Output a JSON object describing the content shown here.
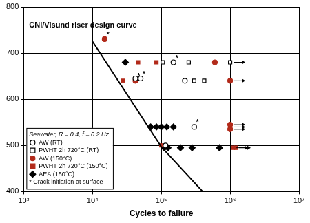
{
  "chart_data": {
    "type": "scatter",
    "x_label": "Cycles to failure",
    "log": "x",
    "grid": true,
    "legend": "lower left",
    "legend_title": "Seawater, R = 0.4, f = 0.2 Hz",
    "legend_note": "* Crack initiation at surface",
    "xlim": [
      1000,
      10000000
    ],
    "xticks": [
      {
        "value": 1000,
        "label": "10³"
      },
      {
        "value": 10000,
        "label": "10⁴"
      },
      {
        "value": 100000,
        "label": "10⁵"
      },
      {
        "value": 1000000,
        "label": "10⁶"
      },
      {
        "value": 10000000,
        "label": "10⁷"
      }
    ],
    "ylim": [
      400,
      800
    ],
    "yticks": [
      400,
      500,
      600,
      700,
      800
    ],
    "series": [
      {
        "name": "CNI/Visund riser design curve",
        "type": "line",
        "color": "#000000",
        "marker": "none",
        "line_style": "solid",
        "x": [
          10000,
          100000,
          400000
        ],
        "values": [
          725,
          497,
          400
        ]
      },
      {
        "name": "AW (RT)",
        "color": "#000000",
        "marker": "circle_open",
        "x": [
          42000,
          50000,
          150000,
          220000,
          300000,
          115000
        ],
        "values": [
          645,
          645,
          680,
          640,
          540,
          500
        ],
        "runout": [
          false,
          false,
          false,
          false,
          false,
          false
        ],
        "point_labels": [
          null,
          "*",
          "*",
          null,
          "*",
          null
        ]
      },
      {
        "name": "PWHT 2h 720°C (RT)",
        "color": "#000000",
        "marker": "square_open",
        "x": [
          105000,
          250000,
          1000000,
          300000,
          420000
        ],
        "values": [
          680,
          680,
          680,
          640,
          640
        ],
        "runout": [
          false,
          false,
          true,
          false,
          false
        ],
        "point_labels": [
          null,
          null,
          null,
          null,
          null
        ]
      },
      {
        "name": "AW (150°C)",
        "color": "#b22a1a",
        "marker": "circle",
        "x": [
          15000,
          42000,
          600000,
          1000000,
          1000000,
          1000000
        ],
        "values": [
          730,
          640,
          680,
          640,
          545,
          535
        ],
        "runout": [
          false,
          false,
          false,
          true,
          true,
          true
        ],
        "point_labels": [
          "*",
          "*",
          null,
          null,
          null,
          null
        ]
      },
      {
        "name": "PWHT 2h 720°C (150°C)",
        "color": "#b22a1a",
        "marker": "square",
        "x": [
          28000,
          46000,
          85000,
          100000,
          1000000,
          1100000,
          1200000
        ],
        "values": [
          640,
          680,
          680,
          500,
          540,
          495,
          495
        ],
        "runout": [
          false,
          false,
          false,
          false,
          true,
          true,
          true
        ],
        "point_labels": [
          null,
          null,
          null,
          null,
          null,
          null,
          null
        ]
      },
      {
        "name": "AEA (150°C)",
        "color": "#000000",
        "marker": "diamond",
        "x": [
          30000,
          70000,
          85000,
          100000,
          120000,
          150000,
          110000,
          125000,
          190000,
          280000,
          700000
        ],
        "values": [
          680,
          540,
          540,
          540,
          540,
          540,
          495,
          495,
          495,
          495,
          495
        ],
        "runout": [
          false,
          false,
          false,
          false,
          false,
          false,
          false,
          false,
          false,
          false,
          false
        ],
        "point_labels": [
          null,
          null,
          null,
          null,
          null,
          null,
          null,
          null,
          null,
          null,
          null
        ]
      }
    ]
  }
}
